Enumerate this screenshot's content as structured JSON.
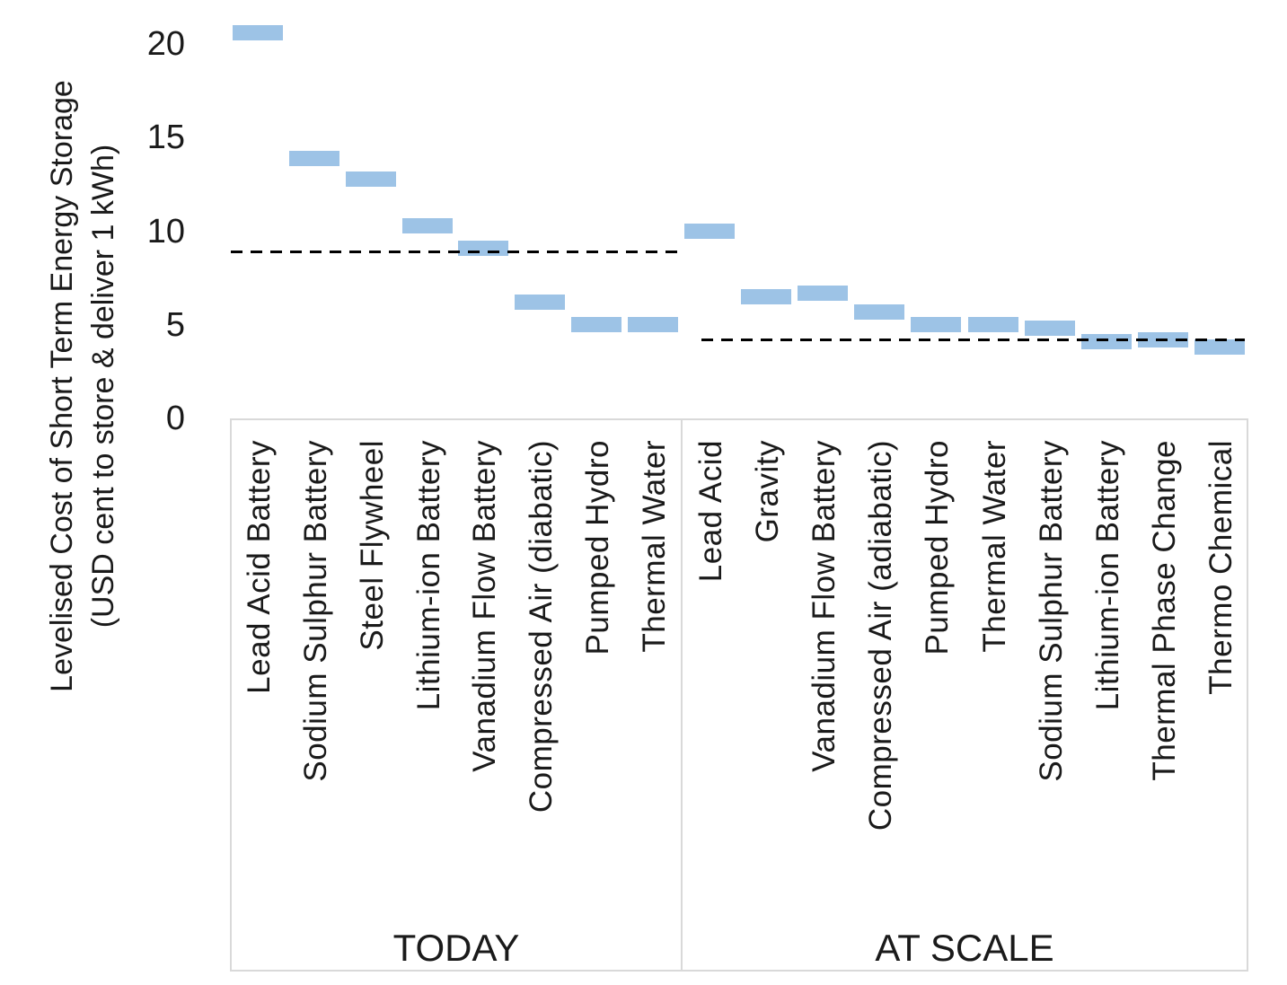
{
  "y_axis": {
    "title_line1": "Levelised Cost of Short Term Energy Storage",
    "title_line2": "(USD cent to store & deliver 1 kWh)",
    "ticks": [
      "0",
      "5",
      "10",
      "15",
      "20"
    ]
  },
  "chart_data": {
    "type": "bar",
    "subtype": "floating-range-markers",
    "title": "",
    "ylabel": "Levelised Cost of Short Term Energy Storage (USD cent to store & deliver 1 kWh)",
    "ylim": [
      0,
      22.3
    ],
    "y_ticks": [
      0,
      5,
      10,
      15,
      20
    ],
    "grid": false,
    "legend": "none",
    "bar_color": "#9DC3E6",
    "reference_line_style": "black dashed",
    "bar_thickness_units": 0.8,
    "groups": [
      {
        "label": "TODAY",
        "dashed_reference_line": 8.9,
        "categories": [
          "Lead Acid Battery",
          "Sodium Sulphur Battery",
          "Steel Flywheel",
          "Lithium-ion Battery",
          "Vanadium Flow Battery",
          "Compressed Air (diabatic)",
          "Pumped Hydro",
          "Thermal Water"
        ],
        "values": [
          20.6,
          13.9,
          12.8,
          10.3,
          9.1,
          6.2,
          5.0,
          5.0
        ]
      },
      {
        "label": "AT SCALE",
        "dashed_reference_line": 4.2,
        "categories": [
          "Lead Acid",
          "Gravity",
          "Vanadium Flow Battery",
          "Compressed Air (adiabatic)",
          "Pumped Hydro",
          "Thermal Water",
          "Sodium Sulphur Battery",
          "Lithium-ion Battery",
          "Thermal Phase Change",
          "Thermo Chemical"
        ],
        "values": [
          10.0,
          6.5,
          6.7,
          5.7,
          5.0,
          5.0,
          4.8,
          4.1,
          4.2,
          3.8
        ]
      }
    ]
  }
}
